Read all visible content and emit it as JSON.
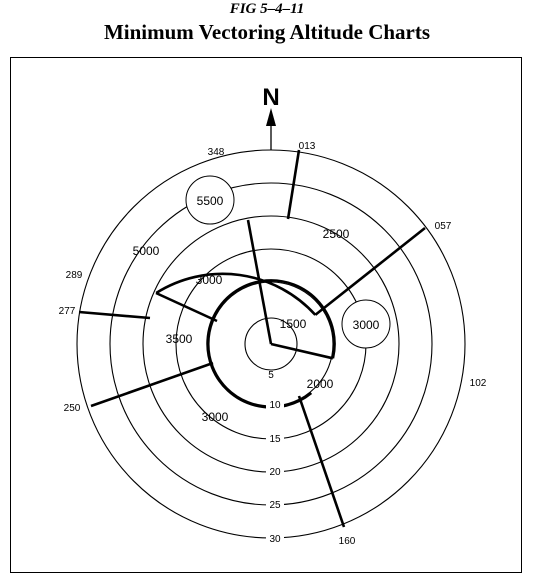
{
  "figure": {
    "number": "FIG 5–4–11",
    "title": "Minimum Vectoring Altitude Charts"
  },
  "north_label": "N",
  "bearings": [
    "348",
    "013",
    "057",
    "102",
    "160",
    "250",
    "277",
    "289"
  ],
  "ring_labels": [
    "5",
    "10",
    "15",
    "20",
    "25",
    "30"
  ],
  "altitudes": [
    "1500",
    "2000",
    "3000",
    "3000",
    "3500",
    "3000",
    "5000",
    "5500",
    "2500",
    "3000"
  ]
}
